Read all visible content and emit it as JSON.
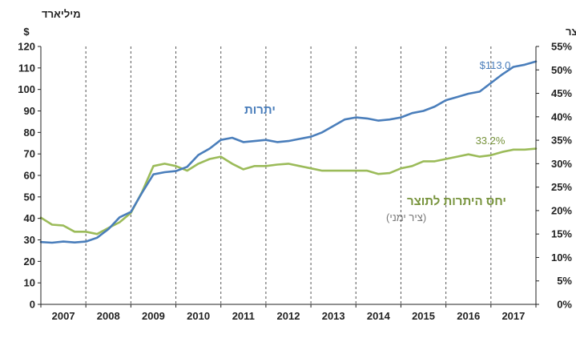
{
  "chart_data": {
    "type": "line",
    "left_axis": {
      "unit_line1": "מיליארד",
      "unit_line2": "$",
      "ylim": [
        0,
        120
      ],
      "ticks": [
        0,
        10,
        20,
        30,
        40,
        50,
        60,
        70,
        80,
        90,
        100,
        110,
        120
      ]
    },
    "right_axis": {
      "unit": "תוצר",
      "ylim": [
        0,
        55
      ],
      "ticks": [
        "0%",
        "5%",
        "10%",
        "15%",
        "20%",
        "25%",
        "30%",
        "35%",
        "40%",
        "45%",
        "50%",
        "55%"
      ]
    },
    "x_axis": {
      "years": [
        "2007",
        "2008",
        "2009",
        "2010",
        "2011",
        "2012",
        "2013",
        "2014",
        "2015",
        "2016",
        "2017"
      ],
      "xlim": [
        2007.0,
        2018.0
      ],
      "year_dividers": "dashed vertical lines at year boundaries"
    },
    "grid": false,
    "series": [
      {
        "name": "יתרות",
        "axis": "left",
        "color": "#4a7ebb",
        "end_label": "$113.0",
        "points": [
          [
            2007.0,
            29
          ],
          [
            2007.25,
            28.7
          ],
          [
            2007.5,
            29.2
          ],
          [
            2007.75,
            28.8
          ],
          [
            2008.0,
            29.2
          ],
          [
            2008.25,
            31
          ],
          [
            2008.5,
            35
          ],
          [
            2008.75,
            40.5
          ],
          [
            2009.0,
            43
          ],
          [
            2009.25,
            52
          ],
          [
            2009.5,
            60.5
          ],
          [
            2009.75,
            61.5
          ],
          [
            2010.0,
            62
          ],
          [
            2010.25,
            64
          ],
          [
            2010.5,
            69.5
          ],
          [
            2010.75,
            72.5
          ],
          [
            2011.0,
            76.5
          ],
          [
            2011.25,
            77.5
          ],
          [
            2011.5,
            75.5
          ],
          [
            2011.75,
            76
          ],
          [
            2012.0,
            76.5
          ],
          [
            2012.25,
            75.5
          ],
          [
            2012.5,
            76
          ],
          [
            2012.75,
            77
          ],
          [
            2013.0,
            78
          ],
          [
            2013.25,
            80
          ],
          [
            2013.5,
            83
          ],
          [
            2013.75,
            86
          ],
          [
            2014.0,
            87
          ],
          [
            2014.25,
            86.5
          ],
          [
            2014.5,
            85.5
          ],
          [
            2014.75,
            86
          ],
          [
            2015.0,
            87
          ],
          [
            2015.25,
            89
          ],
          [
            2015.5,
            90
          ],
          [
            2015.75,
            92
          ],
          [
            2016.0,
            95
          ],
          [
            2016.25,
            96.5
          ],
          [
            2016.5,
            98
          ],
          [
            2016.75,
            99
          ],
          [
            2017.0,
            103
          ],
          [
            2017.25,
            107
          ],
          [
            2017.5,
            110.5
          ],
          [
            2017.75,
            111.5
          ],
          [
            2018.0,
            113.0
          ]
        ]
      },
      {
        "name": "יחס היתרות לתוצר",
        "name_sub": "(ציר ימני)",
        "axis": "right",
        "color": "#9bbb59",
        "end_label": "33.2%",
        "points": [
          [
            2007.0,
            18.5
          ],
          [
            2007.25,
            17
          ],
          [
            2007.5,
            16.8
          ],
          [
            2007.75,
            15.5
          ],
          [
            2008.0,
            15.5
          ],
          [
            2008.25,
            15
          ],
          [
            2008.5,
            16.3
          ],
          [
            2008.75,
            17.5
          ],
          [
            2009.0,
            19.5
          ],
          [
            2009.25,
            24
          ],
          [
            2009.5,
            29.5
          ],
          [
            2009.75,
            30
          ],
          [
            2010.0,
            29.5
          ],
          [
            2010.25,
            28.5
          ],
          [
            2010.5,
            30
          ],
          [
            2010.75,
            31
          ],
          [
            2011.0,
            31.5
          ],
          [
            2011.25,
            30
          ],
          [
            2011.5,
            28.8
          ],
          [
            2011.75,
            29.5
          ],
          [
            2012.0,
            29.5
          ],
          [
            2012.25,
            29.8
          ],
          [
            2012.5,
            30
          ],
          [
            2012.75,
            29.5
          ],
          [
            2013.0,
            29
          ],
          [
            2013.25,
            28.5
          ],
          [
            2013.5,
            28.5
          ],
          [
            2013.75,
            28.5
          ],
          [
            2014.0,
            28.5
          ],
          [
            2014.25,
            28.5
          ],
          [
            2014.5,
            27.8
          ],
          [
            2014.75,
            28
          ],
          [
            2015.0,
            29
          ],
          [
            2015.25,
            29.5
          ],
          [
            2015.5,
            30.5
          ],
          [
            2015.75,
            30.5
          ],
          [
            2016.0,
            31
          ],
          [
            2016.25,
            31.5
          ],
          [
            2016.5,
            32
          ],
          [
            2016.75,
            31.5
          ],
          [
            2017.0,
            31.8
          ],
          [
            2017.25,
            32.5
          ],
          [
            2017.5,
            33
          ],
          [
            2017.75,
            33
          ],
          [
            2018.0,
            33.2
          ]
        ]
      }
    ]
  }
}
